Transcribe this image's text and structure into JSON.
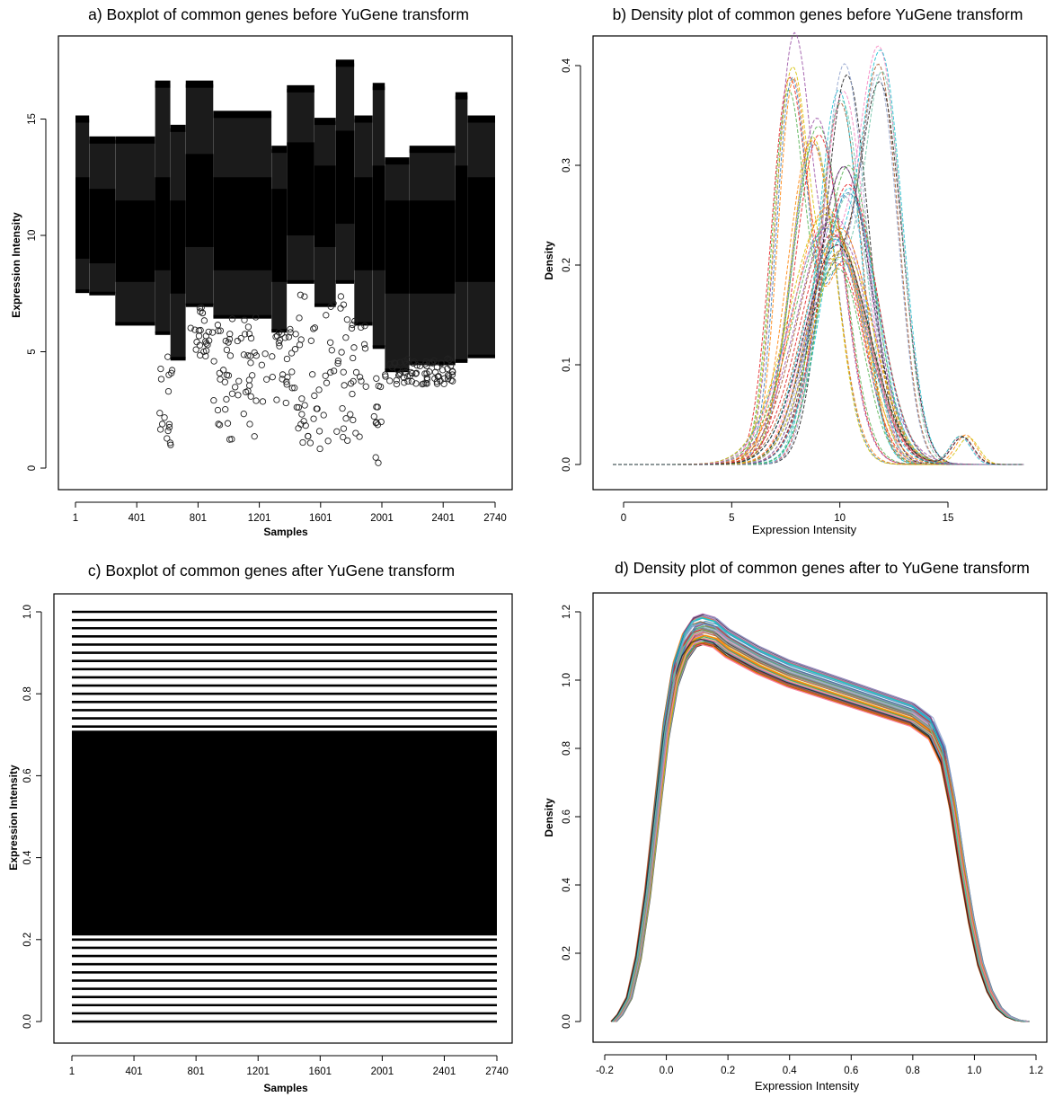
{
  "chart_data": [
    {
      "id": "a",
      "type": "boxplot",
      "title": "a) Boxplot of common genes before YuGene transform",
      "xlabel": "Samples",
      "ylabel": "Expression Intensity",
      "xticks": [
        1,
        401,
        801,
        1201,
        1601,
        2001,
        2401,
        2740
      ],
      "yticks": [
        0,
        5,
        10,
        15
      ],
      "xlim": [
        1,
        2740
      ],
      "ylim": [
        0,
        17.8
      ],
      "n_samples": 2740,
      "segments": [
        {
          "x": [
            1,
            90
          ],
          "whisker_low": 7.6,
          "q1": 9.0,
          "median": 10.5,
          "q3": 12.5,
          "whisker_high": 15.0
        },
        {
          "x": [
            91,
            260
          ],
          "whisker_low": 7.5,
          "q1": 8.8,
          "median": 10.2,
          "q3": 12.0,
          "whisker_high": 14.1
        },
        {
          "x": [
            261,
            520
          ],
          "whisker_low": 6.2,
          "q1": 8.0,
          "median": 9.5,
          "q3": 11.5,
          "whisker_high": 14.1
        },
        {
          "x": [
            521,
            620
          ],
          "whisker_low": 5.8,
          "q1": 8.5,
          "median": 10.5,
          "q3": 12.5,
          "whisker_high": 16.5
        },
        {
          "x": [
            621,
            720
          ],
          "whisker_low": 4.7,
          "q1": 7.5,
          "median": 9.5,
          "q3": 11.5,
          "whisker_high": 14.6
        },
        {
          "x": [
            721,
            900
          ],
          "whisker_low": 7.0,
          "q1": 9.5,
          "median": 11.5,
          "q3": 13.5,
          "whisker_high": 16.5
        },
        {
          "x": [
            901,
            1280
          ],
          "whisker_low": 6.5,
          "q1": 8.5,
          "median": 10.5,
          "q3": 12.5,
          "whisker_high": 15.2
        },
        {
          "x": [
            1281,
            1380
          ],
          "whisker_low": 5.9,
          "q1": 8.0,
          "median": 10.0,
          "q3": 12.0,
          "whisker_high": 13.7
        },
        {
          "x": [
            1381,
            1560
          ],
          "whisker_low": 8.0,
          "q1": 10.0,
          "median": 12.0,
          "q3": 14.0,
          "whisker_high": 16.3
        },
        {
          "x": [
            1561,
            1700
          ],
          "whisker_low": 7.0,
          "q1": 9.5,
          "median": 11.0,
          "q3": 13.0,
          "whisker_high": 14.9
        },
        {
          "x": [
            1701,
            1820
          ],
          "whisker_low": 8.0,
          "q1": 10.5,
          "median": 12.5,
          "q3": 14.5,
          "whisker_high": 17.4
        },
        {
          "x": [
            1821,
            1940
          ],
          "whisker_low": 6.2,
          "q1": 8.5,
          "median": 10.5,
          "q3": 12.5,
          "whisker_high": 15.0
        },
        {
          "x": [
            1941,
            2020
          ],
          "whisker_low": 5.2,
          "q1": 8.5,
          "median": 10.5,
          "q3": 13.0,
          "whisker_high": 16.4
        },
        {
          "x": [
            2021,
            2180
          ],
          "whisker_low": 4.2,
          "q1": 7.5,
          "median": 9.5,
          "q3": 11.5,
          "whisker_high": 13.2
        },
        {
          "x": [
            2181,
            2480
          ],
          "whisker_low": 4.5,
          "q1": 7.5,
          "median": 9.5,
          "q3": 11.5,
          "whisker_high": 13.7
        },
        {
          "x": [
            2481,
            2560
          ],
          "whisker_low": 4.6,
          "q1": 8.0,
          "median": 10.5,
          "q3": 13.0,
          "whisker_high": 16.0
        },
        {
          "x": [
            2561,
            2740
          ],
          "whisker_low": 4.8,
          "q1": 8.0,
          "median": 10.0,
          "q3": 12.5,
          "whisker_high": 15.0
        }
      ],
      "outlier_groups": [
        {
          "x": [
            540,
            640
          ],
          "y": [
            0.2,
            4.8
          ]
        },
        {
          "x": [
            750,
            900
          ],
          "y": [
            4.8,
            7.0
          ]
        },
        {
          "x": [
            900,
            1250
          ],
          "y": [
            1.2,
            6.5
          ]
        },
        {
          "x": [
            1280,
            1450
          ],
          "y": [
            2.5,
            6.0
          ]
        },
        {
          "x": [
            1450,
            1900
          ],
          "y": [
            0.8,
            7.5
          ]
        },
        {
          "x": [
            1940,
            2010
          ],
          "y": [
            0.1,
            4.0
          ]
        },
        {
          "x": [
            2020,
            2480
          ],
          "y": [
            3.6,
            4.7
          ]
        }
      ]
    },
    {
      "id": "b",
      "type": "line",
      "title": "b) Density plot of common genes before YuGene transform",
      "xlabel": "Expression Intensity",
      "ylabel": "Density",
      "xticks": [
        0,
        5,
        10,
        15
      ],
      "yticks": [
        0.0,
        0.1,
        0.2,
        0.3,
        0.4
      ],
      "xlim": [
        -0.5,
        18.7
      ],
      "ylim": [
        0,
        0.41
      ],
      "n_curves": 2740,
      "curve_families": [
        {
          "peaks": [
            {
              "mu": 7.6,
              "sd": 0.75,
              "h": 0.405
            },
            {
              "mu": 10.0,
              "sd": 1.1,
              "h": 0.22
            }
          ],
          "count": 6
        },
        {
          "peaks": [
            {
              "mu": 10.1,
              "sd": 1.0,
              "h": 0.41
            }
          ],
          "count": 6
        },
        {
          "peaks": [
            {
              "mu": 8.8,
              "sd": 1.1,
              "h": 0.35
            }
          ],
          "count": 6
        },
        {
          "peaks": [
            {
              "mu": 11.9,
              "sd": 0.9,
              "h": 0.385
            },
            {
              "mu": 9.5,
              "sd": 1.2,
              "h": 0.2
            }
          ],
          "count": 6
        },
        {
          "peaks": [
            {
              "mu": 9.5,
              "sd": 1.6,
              "h": 0.26
            }
          ],
          "count": 8
        },
        {
          "peaks": [
            {
              "mu": 10.2,
              "sd": 1.3,
              "h": 0.3
            }
          ],
          "count": 8
        },
        {
          "peaks": [
            {
              "mu": 10.0,
              "sd": 1.5,
              "h": 0.24
            },
            {
              "mu": 15.8,
              "sd": 0.5,
              "h": 0.03
            }
          ],
          "count": 6
        }
      ],
      "colors": [
        "#e41a1c",
        "#377eb8",
        "#4daf4a",
        "#984ea3",
        "#ff7f00",
        "#d4c000",
        "#a65628",
        "#f781bf",
        "#17becf",
        "#1a1a1a",
        "#66c2a5",
        "#8da0cb"
      ]
    },
    {
      "id": "c",
      "type": "boxplot",
      "title": "c) Boxplot of common genes after YuGene transform",
      "xlabel": "Samples",
      "ylabel": "Expression Intensity",
      "xticks": [
        1,
        401,
        801,
        1201,
        1601,
        2001,
        2401,
        2740
      ],
      "yticks": [
        0.0,
        0.2,
        0.4,
        0.6,
        0.8,
        1.0
      ],
      "xlim": [
        1,
        2740
      ],
      "ylim": [
        0,
        1
      ],
      "n_samples": 2740,
      "whisker_low": 0.0,
      "q1": 0.21,
      "median": 0.45,
      "q3": 0.71,
      "whisker_high": 1.0
    },
    {
      "id": "d",
      "type": "line",
      "title": "d) Density plot of common genes after to YuGene transform",
      "xlabel": "Expression Intensity",
      "ylabel": "Density",
      "xticks": [
        -0.2,
        0.0,
        0.2,
        0.4,
        0.6,
        0.8,
        1.0,
        1.2
      ],
      "yticks": [
        0.0,
        0.2,
        0.4,
        0.6,
        0.8,
        1.0,
        1.2
      ],
      "xlim": [
        -0.2,
        1.2
      ],
      "ylim": [
        0,
        1.2
      ],
      "n_curves": 2740,
      "profile_x": [
        -0.17,
        -0.15,
        -0.12,
        -0.09,
        -0.06,
        -0.03,
        0.0,
        0.03,
        0.06,
        0.09,
        0.12,
        0.16,
        0.2,
        0.3,
        0.4,
        0.5,
        0.6,
        0.7,
        0.8,
        0.86,
        0.9,
        0.93,
        0.96,
        0.99,
        1.02,
        1.05,
        1.08,
        1.11,
        1.14,
        1.17
      ],
      "profile_y": [
        0.0,
        0.02,
        0.07,
        0.19,
        0.38,
        0.62,
        0.86,
        1.02,
        1.1,
        1.14,
        1.15,
        1.14,
        1.11,
        1.06,
        1.02,
        0.99,
        0.96,
        0.93,
        0.9,
        0.86,
        0.78,
        0.64,
        0.46,
        0.3,
        0.17,
        0.09,
        0.04,
        0.015,
        0.004,
        0.0
      ],
      "colors": [
        "#e41a1c",
        "#377eb8",
        "#4daf4a",
        "#984ea3",
        "#ff7f00",
        "#d4c000",
        "#a65628",
        "#f781bf",
        "#17becf",
        "#1a1a1a",
        "#66c2a5",
        "#8da0cb"
      ]
    }
  ]
}
